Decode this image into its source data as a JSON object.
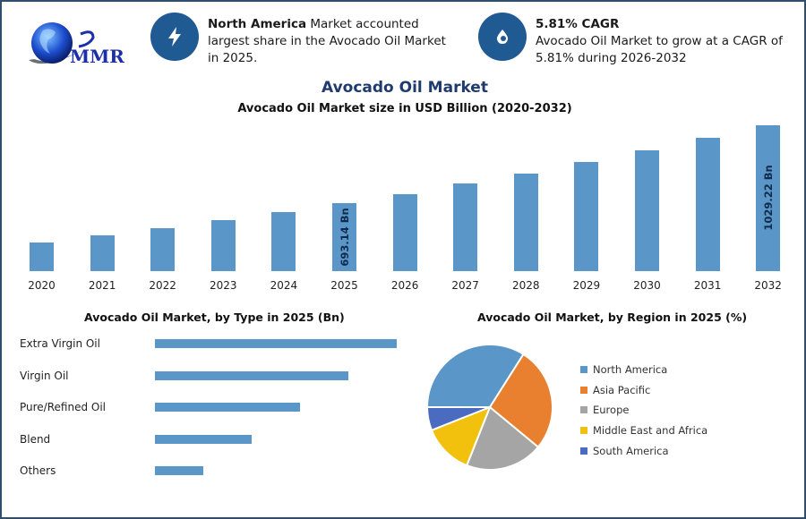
{
  "brand": {
    "logo_text": "MMR",
    "icon": "globe-icon"
  },
  "highlights": [
    {
      "icon": "lightning-icon",
      "bold": "North America",
      "text": " Market accounted largest share in the Avocado Oil Market in 2025."
    },
    {
      "icon": "droplet-icon",
      "bold": "5.81% CAGR",
      "text": "Avocado Oil Market to grow at a CAGR of 5.81% during 2026-2032"
    }
  ],
  "colors": {
    "accent": "#1f5a92",
    "bar": "#5b96c8",
    "title": "#1f3a6e",
    "border": "#2f4f6f"
  },
  "chart_data": [
    {
      "type": "bar",
      "title": "Avocado Oil Market",
      "subtitle": "Avocado Oil Market size in USD Billion (2020-2032)",
      "xlabel": "",
      "ylabel": "USD Billion",
      "categories": [
        "2020",
        "2021",
        "2022",
        "2023",
        "2024",
        "2025",
        "2026",
        "2027",
        "2028",
        "2029",
        "2030",
        "2031",
        "2032"
      ],
      "values": [
        523.1,
        553.5,
        585.7,
        619.7,
        655.7,
        693.14,
        733.4,
        776.0,
        821.1,
        868.8,
        919.3,
        972.7,
        1029.22
      ],
      "data_labels": {
        "2025": "693.14 Bn",
        "2032": "1029.22 Bn"
      },
      "grid": false,
      "ylim": [
        400,
        1040
      ]
    },
    {
      "type": "bar",
      "orientation": "horizontal",
      "title": "Avocado Oil Market, by Type in 2025 (Bn)",
      "categories": [
        "Extra Virgin Oil",
        "Virgin Oil",
        "Pure/Refined Oil",
        "Blend",
        "Others"
      ],
      "values": [
        5,
        4,
        3,
        2,
        1
      ],
      "note": "relative bar lengths; no axis values shown",
      "grid": false
    },
    {
      "type": "pie",
      "title": "Avocado Oil Market, by Region in 2025 (%)",
      "categories": [
        "North America",
        "Asia Pacific",
        "Europe",
        "Middle East and Africa",
        "South America"
      ],
      "values": [
        34,
        27,
        20,
        13,
        6
      ],
      "colors": [
        "#5b96c8",
        "#e8802f",
        "#a5a5a5",
        "#f2c10e",
        "#4a6bbf"
      ],
      "legend_position": "right"
    }
  ]
}
